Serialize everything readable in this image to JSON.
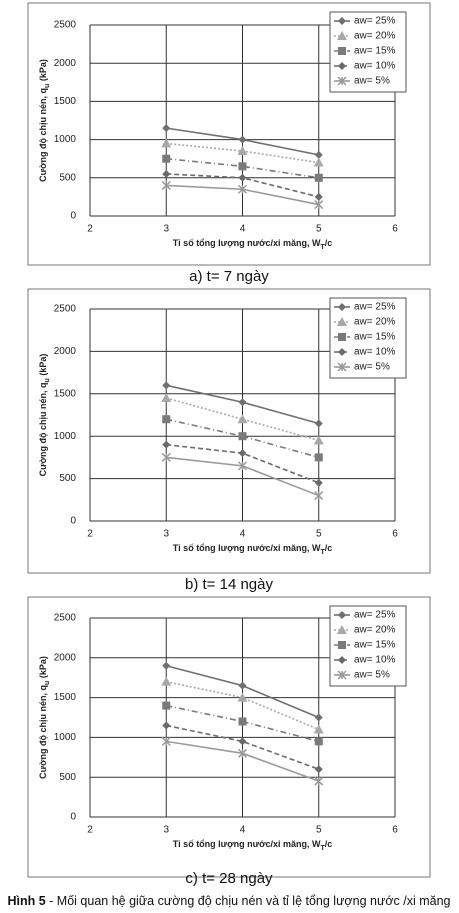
{
  "chart_data": [
    {
      "type": "line",
      "caption": "a) t= 7 ngày",
      "x_label": [
        "Tỉ số tổng lượng nước/xi măng, W",
        "T",
        "/c"
      ],
      "y_label": [
        "Cường độ chịu nén, q",
        "u",
        " (kPa)"
      ],
      "x": [
        3,
        4,
        5
      ],
      "xlim": [
        2,
        6
      ],
      "xticks": [
        2,
        3,
        4,
        5,
        6
      ],
      "ylim": [
        0,
        2500
      ],
      "yticks": [
        0,
        500,
        1000,
        1500,
        2000,
        2500
      ],
      "grid": true,
      "legend": "top-right",
      "series": [
        {
          "name": "aw= 25%",
          "color": "#6f6f6f",
          "marker": "diamond",
          "dash": "solid",
          "values": [
            1150,
            1000,
            800
          ]
        },
        {
          "name": "aw= 20%",
          "color": "#a8a8a8",
          "marker": "triangle",
          "dash": "dotted",
          "values": [
            950,
            850,
            700
          ]
        },
        {
          "name": "aw= 15%",
          "color": "#7a7a7a",
          "marker": "square",
          "dash": "dashdot",
          "values": [
            750,
            650,
            500
          ]
        },
        {
          "name": "aw= 10%",
          "color": "#6a6a6a",
          "marker": "diamond",
          "dash": "dashed",
          "values": [
            550,
            500,
            250
          ]
        },
        {
          "name": "aw= 5%",
          "color": "#9a9a9a",
          "marker": "star",
          "dash": "solid",
          "values": [
            400,
            350,
            150
          ]
        }
      ]
    },
    {
      "type": "line",
      "caption": "b) t= 14 ngày",
      "x_label": [
        "Tỉ số tổng lượng nước/xi măng, W",
        "T",
        "/c"
      ],
      "y_label": [
        "Cường độ chịu nén, q",
        "u",
        " (kPa)"
      ],
      "x": [
        3,
        4,
        5
      ],
      "xlim": [
        2,
        6
      ],
      "xticks": [
        2,
        3,
        4,
        5,
        6
      ],
      "ylim": [
        0,
        2500
      ],
      "yticks": [
        0,
        500,
        1000,
        1500,
        2000,
        2500
      ],
      "grid": true,
      "legend": "top-right",
      "series": [
        {
          "name": "aw= 25%",
          "color": "#6f6f6f",
          "marker": "diamond",
          "dash": "solid",
          "values": [
            1600,
            1400,
            1150
          ]
        },
        {
          "name": "aw= 20%",
          "color": "#a8a8a8",
          "marker": "triangle",
          "dash": "dotted",
          "values": [
            1450,
            1200,
            950
          ]
        },
        {
          "name": "aw= 15%",
          "color": "#7a7a7a",
          "marker": "square",
          "dash": "dashdot",
          "values": [
            1200,
            1000,
            750
          ]
        },
        {
          "name": "aw= 10%",
          "color": "#6a6a6a",
          "marker": "diamond",
          "dash": "dashed",
          "values": [
            900,
            800,
            450
          ]
        },
        {
          "name": "aw= 5%",
          "color": "#9a9a9a",
          "marker": "star",
          "dash": "solid",
          "values": [
            750,
            650,
            300
          ]
        }
      ]
    },
    {
      "type": "line",
      "caption": "c) t= 28 ngày",
      "x_label": [
        "Tỉ số tổng lượng nước/xi măng, W",
        "T",
        "/c"
      ],
      "y_label": [
        "Cường độ chịu nén, q",
        "u",
        " (kPa)"
      ],
      "x": [
        3,
        4,
        5
      ],
      "xlim": [
        2,
        6
      ],
      "xticks": [
        2,
        3,
        4,
        5,
        6
      ],
      "ylim": [
        0,
        2500
      ],
      "yticks": [
        0,
        500,
        1000,
        1500,
        2000,
        2500
      ],
      "grid": true,
      "legend": "top-right",
      "series": [
        {
          "name": "aw= 25%",
          "color": "#6f6f6f",
          "marker": "diamond",
          "dash": "solid",
          "values": [
            1900,
            1650,
            1250
          ]
        },
        {
          "name": "aw= 20%",
          "color": "#a8a8a8",
          "marker": "triangle",
          "dash": "dotted",
          "values": [
            1700,
            1500,
            1100
          ]
        },
        {
          "name": "aw= 15%",
          "color": "#7a7a7a",
          "marker": "square",
          "dash": "dashdot",
          "values": [
            1400,
            1200,
            950
          ]
        },
        {
          "name": "aw= 10%",
          "color": "#6a6a6a",
          "marker": "diamond",
          "dash": "dashed",
          "values": [
            1150,
            950,
            600
          ]
        },
        {
          "name": "aw= 5%",
          "color": "#9a9a9a",
          "marker": "star",
          "dash": "solid",
          "values": [
            950,
            800,
            450
          ]
        }
      ]
    }
  ],
  "figure_caption": {
    "label": "Hình 5",
    "text": " - Mối quan hệ giữa cường độ chịu nén và tỉ lệ tổng lượng nước /xi măng"
  }
}
